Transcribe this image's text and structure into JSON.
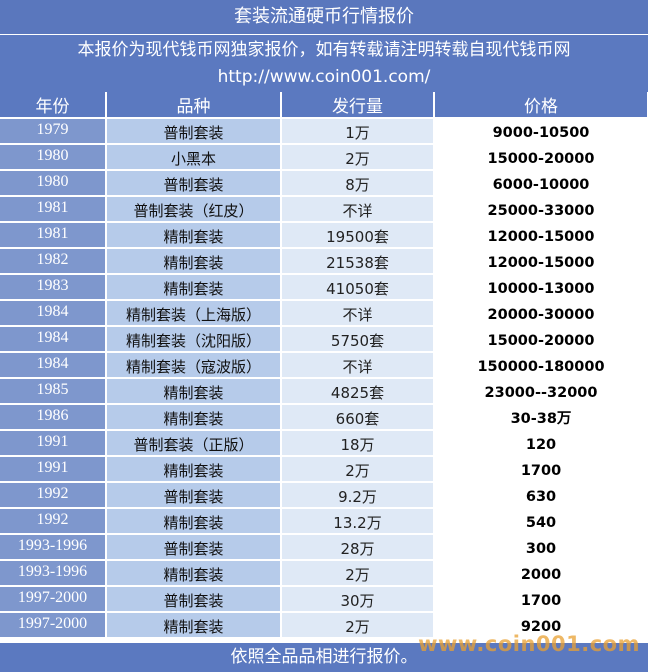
{
  "header": {
    "title": "套装流通硬币行情报价",
    "notice": "本报价为现代钱币网独家报价，如有转载请注明转载自现代钱币网",
    "url": "http://www.coin001.com/"
  },
  "table": {
    "columns": [
      "年份",
      "品种",
      "发行量",
      "价格"
    ],
    "rows": [
      {
        "year": "1979",
        "variety": "普制套装",
        "mintage": "1万",
        "price": "9000-10500"
      },
      {
        "year": "1980",
        "variety": "小黑本",
        "mintage": "2万",
        "price": "15000-20000"
      },
      {
        "year": "1980",
        "variety": "普制套装",
        "mintage": "8万",
        "price": "6000-10000"
      },
      {
        "year": "1981",
        "variety": "普制套装（红皮）",
        "mintage": "不详",
        "price": "25000-33000"
      },
      {
        "year": "1981",
        "variety": "精制套装",
        "mintage": "19500套",
        "price": "12000-15000"
      },
      {
        "year": "1982",
        "variety": "精制套装",
        "mintage": "21538套",
        "price": "12000-15000"
      },
      {
        "year": "1983",
        "variety": "精制套装",
        "mintage": "41050套",
        "price": "10000-13000"
      },
      {
        "year": "1984",
        "variety": "精制套装（上海版）",
        "mintage": "不详",
        "price": "20000-30000"
      },
      {
        "year": "1984",
        "variety": "精制套装（沈阳版）",
        "mintage": "5750套",
        "price": "15000-20000"
      },
      {
        "year": "1984",
        "variety": "精制套装（寇波版）",
        "mintage": "不详",
        "price": "150000-180000"
      },
      {
        "year": "1985",
        "variety": "精制套装",
        "mintage": "4825套",
        "price": "23000--32000"
      },
      {
        "year": "1986",
        "variety": "精制套装",
        "mintage": "660套",
        "price": "30-38万"
      },
      {
        "year": "1991",
        "variety": "普制套装（正版）",
        "mintage": "18万",
        "price": "120"
      },
      {
        "year": "1991",
        "variety": "精制套装",
        "mintage": "2万",
        "price": "1700"
      },
      {
        "year": "1992",
        "variety": "普制套装",
        "mintage": "9.2万",
        "price": "630"
      },
      {
        "year": "1992",
        "variety": "精制套装",
        "mintage": "13.2万",
        "price": "540"
      },
      {
        "year": "1993-1996",
        "variety": "普制套装",
        "mintage": "28万",
        "price": "300"
      },
      {
        "year": "1993-1996",
        "variety": "精制套装",
        "mintage": "2万",
        "price": "2000"
      },
      {
        "year": "1997-2000",
        "variety": "普制套装",
        "mintage": "30万",
        "price": "1700"
      },
      {
        "year": "1997-2000",
        "variety": "精制套装",
        "mintage": "2万",
        "price": "9200"
      }
    ]
  },
  "footer": {
    "note": "依照全品品相进行报价。"
  },
  "watermark": "www.coin001.com",
  "colors": {
    "header_bg": "#5b79c0",
    "year_col_bg": "#7e97cd",
    "variety_col_bg": "#b6cbea",
    "mintage_col_bg": "#dfe9f6",
    "price_col_bg": "#ffffff",
    "watermark": "#e8a032"
  }
}
